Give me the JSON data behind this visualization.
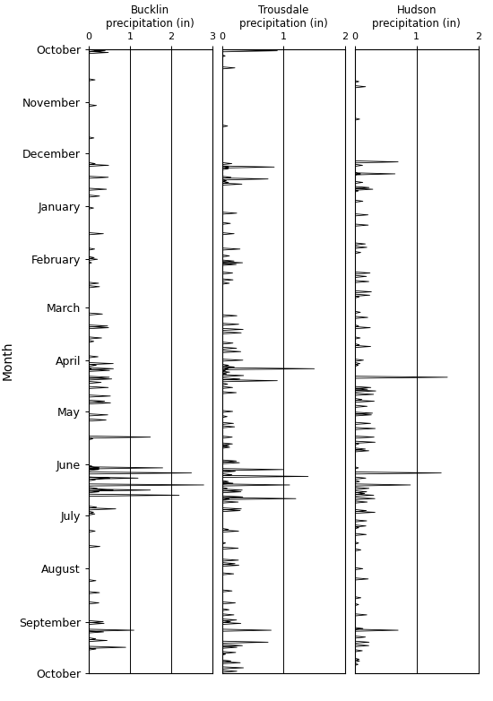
{
  "title_bucklin": "Bucklin\nprecipitation (in)",
  "title_trousdale": "Trousdale\nprecipitation (in)",
  "title_hudson": "Hudson\nprecipitation (in)",
  "ylabel": "Month",
  "months": [
    "October",
    "November",
    "December",
    "January",
    "February",
    "March",
    "April",
    "May",
    "June",
    "July",
    "August",
    "September",
    "October"
  ],
  "bucklin_xlim": [
    0,
    3
  ],
  "trousdale_xlim": [
    0,
    2
  ],
  "hudson_xlim": [
    0,
    2
  ],
  "bucklin_xticks": [
    0,
    1,
    2,
    3
  ],
  "trousdale_xticks": [
    0,
    1,
    2
  ],
  "hudson_xticks": [
    0,
    1,
    2
  ],
  "background_color": "#ffffff",
  "line_color": "#000000",
  "month_lengths": [
    31,
    30,
    31,
    31,
    28,
    31,
    30,
    31,
    30,
    31,
    31,
    30
  ]
}
